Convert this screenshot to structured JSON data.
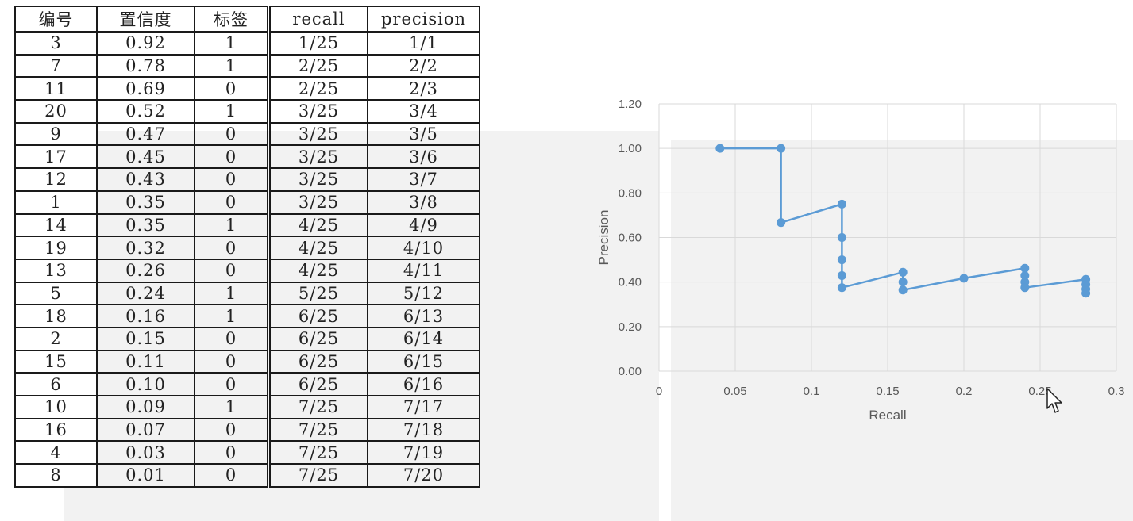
{
  "table": {
    "headers": [
      "编号",
      "置信度",
      "标签",
      "recall",
      "precision"
    ],
    "rows": [
      [
        "3",
        "0.92",
        "1",
        "1/25",
        "1/1"
      ],
      [
        "7",
        "0.78",
        "1",
        "2/25",
        "2/2"
      ],
      [
        "11",
        "0.69",
        "0",
        "2/25",
        "2/3"
      ],
      [
        "20",
        "0.52",
        "1",
        "3/25",
        "3/4"
      ],
      [
        "9",
        "0.47",
        "0",
        "3/25",
        "3/5"
      ],
      [
        "17",
        "0.45",
        "0",
        "3/25",
        "3/6"
      ],
      [
        "12",
        "0.43",
        "0",
        "3/25",
        "3/7"
      ],
      [
        "1",
        "0.35",
        "0",
        "3/25",
        "3/8"
      ],
      [
        "14",
        "0.35",
        "1",
        "4/25",
        "4/9"
      ],
      [
        "19",
        "0.32",
        "0",
        "4/25",
        "4/10"
      ],
      [
        "13",
        "0.26",
        "0",
        "4/25",
        "4/11"
      ],
      [
        "5",
        "0.24",
        "1",
        "5/25",
        "5/12"
      ],
      [
        "18",
        "0.16",
        "1",
        "6/25",
        "6/13"
      ],
      [
        "2",
        "0.15",
        "0",
        "6/25",
        "6/14"
      ],
      [
        "15",
        "0.11",
        "0",
        "6/25",
        "6/15"
      ],
      [
        "6",
        "0.10",
        "0",
        "6/25",
        "6/16"
      ],
      [
        "10",
        "0.09",
        "1",
        "7/25",
        "7/17"
      ],
      [
        "16",
        "0.07",
        "0",
        "7/25",
        "7/18"
      ],
      [
        "4",
        "0.03",
        "0",
        "7/25",
        "7/19"
      ],
      [
        "8",
        "0.01",
        "0",
        "7/25",
        "7/20"
      ]
    ]
  },
  "chart_data": {
    "type": "line",
    "title": "",
    "xlabel": "Recall",
    "ylabel": "Precision",
    "xlim": [
      0,
      0.3
    ],
    "ylim": [
      0,
      1.2
    ],
    "x_ticks": [
      "0",
      "0.05",
      "0.1",
      "0.15",
      "0.2",
      "0.25",
      "0.3"
    ],
    "y_ticks": [
      "0.00",
      "0.20",
      "0.40",
      "0.60",
      "0.80",
      "1.00",
      "1.20"
    ],
    "grid": true,
    "color": "#5b9bd5",
    "series": [
      {
        "x": [
          0.04,
          0.08,
          0.08,
          0.12,
          0.12,
          0.12,
          0.12,
          0.12,
          0.16,
          0.16,
          0.16,
          0.2,
          0.24,
          0.24,
          0.24,
          0.24,
          0.28,
          0.28,
          0.28,
          0.28
        ],
        "y": [
          1.0,
          1.0,
          0.667,
          0.75,
          0.6,
          0.5,
          0.429,
          0.375,
          0.444,
          0.4,
          0.364,
          0.417,
          0.462,
          0.429,
          0.4,
          0.375,
          0.412,
          0.389,
          0.368,
          0.35
        ]
      }
    ]
  }
}
